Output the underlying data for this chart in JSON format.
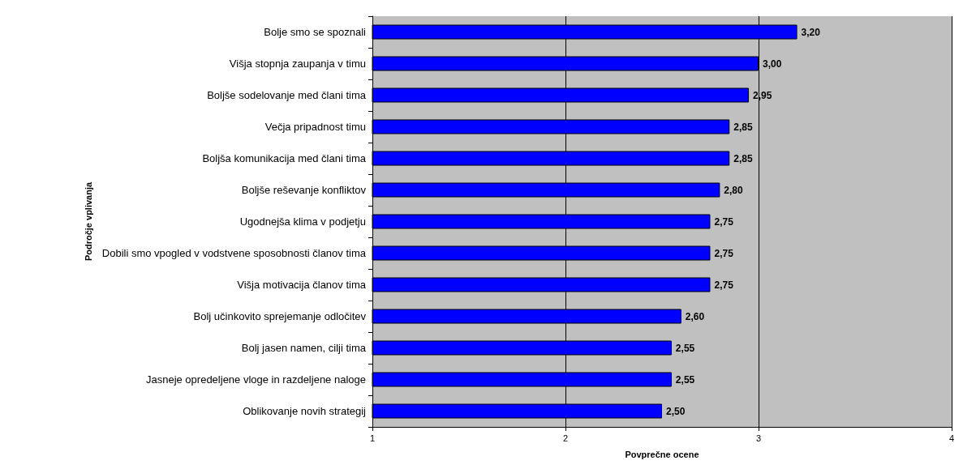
{
  "chart_data": {
    "type": "bar",
    "orientation": "horizontal",
    "xlabel": "Povprečne ocene",
    "ylabel": "Področje vplivanja",
    "categories": [
      "Bolje smo se spoznali",
      "Višja stopnja zaupanja v timu",
      "Boljše sodelovanje med člani tima",
      "Večja pripadnost timu",
      "Boljša komunikacija med člani tima",
      "Boljše reševanje konfliktov",
      "Ugodnejša klima v podjetju",
      "Dobili smo vpogled v vodstvene sposobnosti članov tima",
      "Višja motivacija članov tima",
      "Bolj učinkovito sprejemanje odločitev",
      "Bolj jasen namen, cilji tima",
      "Jasneje opredeljene vloge in razdeljene naloge",
      "Oblikovanje novih strategij"
    ],
    "values": [
      3.2,
      3.0,
      2.95,
      2.85,
      2.85,
      2.8,
      2.75,
      2.75,
      2.75,
      2.6,
      2.55,
      2.55,
      2.5
    ],
    "value_labels": [
      "3,20",
      "3,00",
      "2,95",
      "2,85",
      "2,85",
      "2,80",
      "2,75",
      "2,75",
      "2,75",
      "2,60",
      "2,55",
      "2,55",
      "2,50"
    ],
    "color": "#0000ff",
    "xlim": [
      1,
      4
    ],
    "xticks": [
      1,
      2,
      3,
      4
    ],
    "grid": "x"
  }
}
